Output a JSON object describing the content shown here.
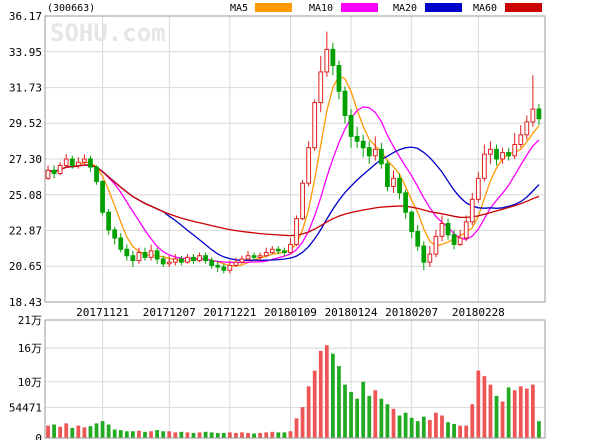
{
  "chart_data": {
    "type": "candlestick",
    "title": "(300663)",
    "watermark": "SOHU.com",
    "x_tick_labels": [
      "20171121",
      "20171207",
      "20171221",
      "20180109",
      "20180124",
      "20180207",
      "20180228"
    ],
    "x_tick_index": [
      9,
      20,
      30,
      40,
      50,
      60,
      71
    ],
    "price_axis": {
      "ylim": [
        18.43,
        36.17
      ],
      "ticks": [
        36.17,
        33.95,
        31.73,
        29.52,
        27.3,
        25.08,
        22.87,
        20.65,
        18.43
      ],
      "tick_labels": [
        "36.17",
        "33.95",
        "31.73",
        "29.52",
        "27.30",
        "25.08",
        "22.87",
        "20.65",
        "18.43"
      ]
    },
    "volume_axis": {
      "ylim": [
        0,
        210000
      ],
      "ticks": [
        210000,
        160000,
        100000,
        54471,
        0
      ],
      "tick_labels": [
        "21万",
        "16万",
        "10万",
        "54471",
        "0"
      ]
    },
    "legend": [
      {
        "label": "MA5",
        "color": "#ff9900"
      },
      {
        "label": "MA10",
        "color": "#ff00ff"
      },
      {
        "label": "MA20",
        "color": "#0000cc"
      },
      {
        "label": "MA60",
        "color": "#cc0000"
      }
    ],
    "up_color": "#e02020",
    "down_color": "#00a000",
    "candles": [
      [
        26.1,
        26.6,
        26.9,
        26.0
      ],
      [
        26.6,
        26.4,
        26.9,
        26.1
      ],
      [
        26.4,
        26.9,
        27.1,
        26.3
      ],
      [
        26.9,
        27.3,
        27.6,
        26.8
      ],
      [
        27.3,
        26.9,
        27.5,
        26.7
      ],
      [
        26.9,
        27.1,
        27.4,
        26.7
      ],
      [
        27.1,
        27.3,
        27.6,
        26.9
      ],
      [
        27.3,
        26.8,
        27.5,
        26.5
      ],
      [
        26.8,
        25.9,
        26.9,
        25.7
      ],
      [
        25.9,
        24.0,
        26.0,
        23.8
      ],
      [
        24.0,
        22.9,
        24.2,
        22.6
      ],
      [
        22.9,
        22.4,
        23.1,
        22.0
      ],
      [
        22.4,
        21.7,
        22.7,
        21.5
      ],
      [
        21.7,
        21.3,
        22.0,
        21.0
      ],
      [
        21.3,
        21.0,
        21.6,
        20.6
      ],
      [
        21.0,
        21.5,
        21.8,
        20.8
      ],
      [
        21.5,
        21.2,
        21.8,
        21.0
      ],
      [
        21.2,
        21.6,
        22.0,
        21.0
      ],
      [
        21.6,
        21.1,
        21.8,
        20.8
      ],
      [
        21.1,
        20.8,
        21.3,
        20.6
      ],
      [
        20.8,
        20.9,
        21.3,
        20.6
      ],
      [
        20.9,
        21.1,
        21.4,
        20.7
      ],
      [
        21.1,
        20.9,
        21.3,
        20.7
      ],
      [
        20.9,
        21.2,
        21.4,
        20.8
      ],
      [
        21.2,
        21.0,
        21.4,
        20.8
      ],
      [
        21.0,
        21.3,
        21.5,
        20.9
      ],
      [
        21.3,
        21.0,
        21.5,
        20.8
      ],
      [
        21.0,
        20.7,
        21.2,
        20.5
      ],
      [
        20.7,
        20.6,
        21.0,
        20.3
      ],
      [
        20.6,
        20.4,
        20.8,
        20.2
      ],
      [
        20.4,
        20.7,
        21.0,
        20.2
      ],
      [
        20.7,
        20.9,
        21.2,
        20.6
      ],
      [
        20.9,
        21.1,
        21.3,
        20.8
      ],
      [
        21.1,
        21.3,
        21.6,
        21.0
      ],
      [
        21.3,
        21.2,
        21.5,
        21.0
      ],
      [
        21.2,
        21.3,
        21.5,
        21.0
      ],
      [
        21.3,
        21.5,
        21.8,
        21.2
      ],
      [
        21.5,
        21.7,
        21.9,
        21.4
      ],
      [
        21.7,
        21.6,
        21.9,
        21.4
      ],
      [
        21.6,
        21.5,
        21.8,
        21.3
      ],
      [
        21.5,
        22.0,
        22.4,
        21.4
      ],
      [
        22.0,
        23.6,
        23.8,
        21.9
      ],
      [
        23.6,
        25.8,
        26.0,
        23.5
      ],
      [
        25.8,
        28.0,
        28.4,
        25.6
      ],
      [
        28.0,
        30.8,
        31.0,
        27.8
      ],
      [
        30.8,
        32.7,
        33.7,
        30.2
      ],
      [
        32.7,
        34.1,
        35.2,
        32.4
      ],
      [
        34.1,
        33.1,
        34.5,
        32.5
      ],
      [
        33.1,
        31.5,
        33.4,
        31.0
      ],
      [
        31.5,
        30.0,
        31.8,
        29.5
      ],
      [
        30.0,
        28.7,
        30.4,
        28.0
      ],
      [
        28.7,
        28.4,
        29.3,
        28.0
      ],
      [
        28.4,
        28.0,
        28.8,
        27.4
      ],
      [
        28.0,
        27.5,
        28.4,
        27.0
      ],
      [
        27.5,
        27.9,
        28.7,
        27.2
      ],
      [
        27.9,
        27.0,
        28.3,
        26.7
      ],
      [
        27.0,
        25.6,
        27.2,
        25.3
      ],
      [
        25.6,
        26.1,
        26.6,
        25.2
      ],
      [
        26.1,
        25.2,
        26.4,
        24.8
      ],
      [
        25.2,
        24.0,
        25.4,
        23.6
      ],
      [
        24.0,
        22.8,
        24.1,
        22.4
      ],
      [
        22.8,
        21.9,
        23.2,
        21.6
      ],
      [
        21.9,
        20.9,
        22.2,
        20.4
      ],
      [
        20.9,
        21.4,
        21.9,
        20.6
      ],
      [
        21.4,
        22.5,
        22.9,
        21.2
      ],
      [
        22.5,
        23.3,
        23.8,
        22.2
      ],
      [
        23.3,
        22.6,
        23.6,
        22.3
      ],
      [
        22.6,
        22.0,
        22.9,
        21.7
      ],
      [
        22.0,
        22.4,
        22.9,
        21.9
      ],
      [
        22.4,
        23.4,
        23.8,
        22.2
      ],
      [
        23.4,
        24.8,
        25.2,
        23.2
      ],
      [
        24.8,
        26.1,
        26.5,
        24.6
      ],
      [
        26.1,
        27.6,
        28.2,
        25.9
      ],
      [
        27.6,
        27.9,
        28.4,
        27.0
      ],
      [
        27.9,
        27.3,
        28.2,
        26.9
      ],
      [
        27.3,
        27.7,
        28.0,
        27.0
      ],
      [
        27.7,
        27.5,
        28.0,
        27.2
      ],
      [
        27.5,
        28.2,
        28.9,
        27.3
      ],
      [
        28.2,
        28.8,
        29.4,
        28.0
      ],
      [
        28.8,
        29.6,
        30.0,
        28.5
      ],
      [
        29.6,
        30.4,
        32.5,
        29.3
      ],
      [
        30.4,
        29.8,
        30.7,
        29.4
      ]
    ],
    "volume": [
      22000,
      24000,
      20000,
      26000,
      18000,
      22000,
      19000,
      21000,
      26000,
      30000,
      24000,
      15000,
      14000,
      12000,
      12000,
      13000,
      11000,
      12000,
      14000,
      12000,
      12000,
      10000,
      11000,
      10000,
      9000,
      10000,
      11000,
      10000,
      9000,
      9000,
      10000,
      9000,
      10000,
      9000,
      8000,
      9000,
      10000,
      11000,
      10000,
      10000,
      12000,
      35000,
      55000,
      92000,
      120000,
      155000,
      165000,
      150000,
      128000,
      95000,
      82000,
      70000,
      100000,
      75000,
      85000,
      70000,
      60000,
      52000,
      40000,
      45000,
      36000,
      30000,
      38000,
      32000,
      45000,
      40000,
      28000,
      25000,
      22000,
      22000,
      60000,
      120000,
      110000,
      95000,
      75000,
      65000,
      90000,
      85000,
      92000,
      88000,
      95000,
      30000
    ]
  }
}
